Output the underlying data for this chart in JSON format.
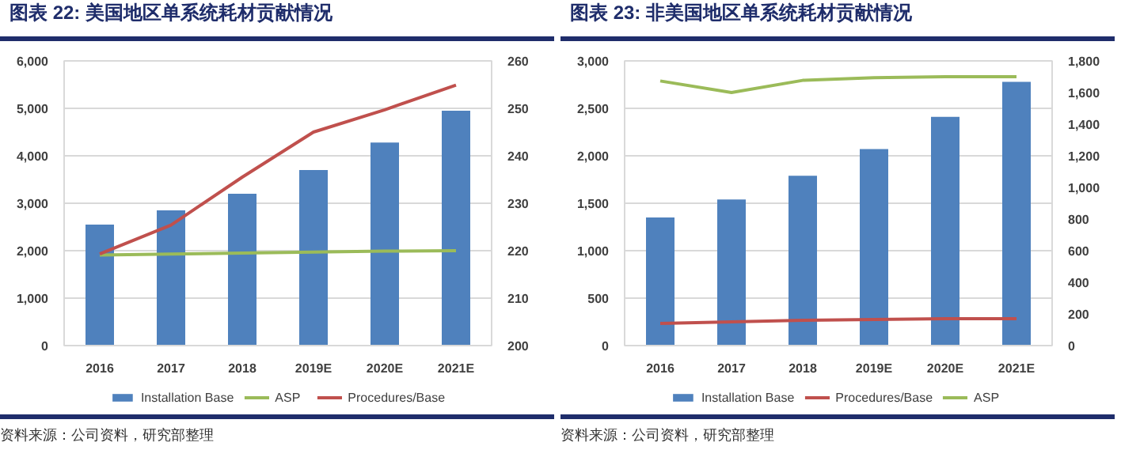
{
  "chart_data": [
    {
      "type": "bar",
      "title": "图表 22: 美国地区单系统耗材贡献情况",
      "categories": [
        "2016",
        "2017",
        "2018",
        "2019E",
        "2020E",
        "2021E"
      ],
      "series": [
        {
          "name": "Installation Base",
          "color": "#4f81bd",
          "values": [
            2550,
            2850,
            3200,
            3700,
            4280,
            4950
          ]
        },
        {
          "name": "ASP",
          "type": "line",
          "color": "#9bbb59",
          "values": [
            1910,
            1930,
            1950,
            1970,
            1990,
            2000
          ]
        },
        {
          "name": "Procedures/Base",
          "type": "line",
          "axis": "y2",
          "color": "#c0504d",
          "values": [
            219.3,
            225.4,
            235.5,
            245,
            249.7,
            254.9
          ]
        }
      ],
      "ylim": [
        0,
        6000
      ],
      "yticks": [
        0,
        {
          "value": 1000,
          "label": "1,000"
        },
        {
          "value": 2000,
          "label": "2,000"
        },
        {
          "value": 3000,
          "label": "3,000"
        },
        {
          "value": 4000,
          "label": "4,000"
        },
        {
          "value": 5000,
          "label": "5,000"
        },
        {
          "value": 6000,
          "label": "6,000"
        }
      ],
      "y2lim": [
        200,
        260
      ],
      "y2ticks": [
        200,
        210,
        220,
        230,
        240,
        250,
        260
      ],
      "grid": "y",
      "legend": "bottom",
      "line_style": "solid",
      "annotations": [
        "资料来源：公司资料，研究部整理"
      ]
    },
    {
      "type": "bar",
      "title": "图表 23: 非美国地区单系统耗材贡献情况",
      "categories": [
        "2016",
        "2017",
        "2018",
        "2019E",
        "2020E",
        "2021E"
      ],
      "series": [
        {
          "name": "Installation Base",
          "color": "#4f81bd",
          "values": [
            1350,
            1540,
            1790,
            2070,
            2410,
            2780
          ]
        },
        {
          "name": "Procedures/Base",
          "type": "line",
          "axis": "y2",
          "color": "#c0504d",
          "values": [
            140,
            150,
            160,
            165,
            170,
            170
          ]
        },
        {
          "name": "ASP",
          "type": "line",
          "axis": "y2",
          "color": "#9bbb59",
          "values": [
            1673,
            1600,
            1677,
            1694,
            1700,
            1700
          ]
        }
      ],
      "ylim": [
        0,
        3000
      ],
      "yticks": [
        0,
        500,
        {
          "value": 1000,
          "label": "1,000"
        },
        {
          "value": 1500,
          "label": "1,500"
        },
        {
          "value": 2000,
          "label": "2,000"
        },
        {
          "value": 2500,
          "label": "2,500"
        },
        {
          "value": 3000,
          "label": "3,000"
        }
      ],
      "y2lim": [
        0,
        1800
      ],
      "y2ticks": [
        0,
        200,
        400,
        600,
        800,
        {
          "value": 1000,
          "label": "1,000"
        },
        {
          "value": 1200,
          "label": "1,200"
        },
        {
          "value": 1400,
          "label": "1,400"
        },
        {
          "value": 1600,
          "label": "1,600"
        },
        {
          "value": 1800,
          "label": "1,800"
        }
      ],
      "grid": "y",
      "legend": "bottom",
      "line_style": "solid",
      "annotations": [
        "资料来源：公司资料，研究部整理"
      ]
    }
  ]
}
